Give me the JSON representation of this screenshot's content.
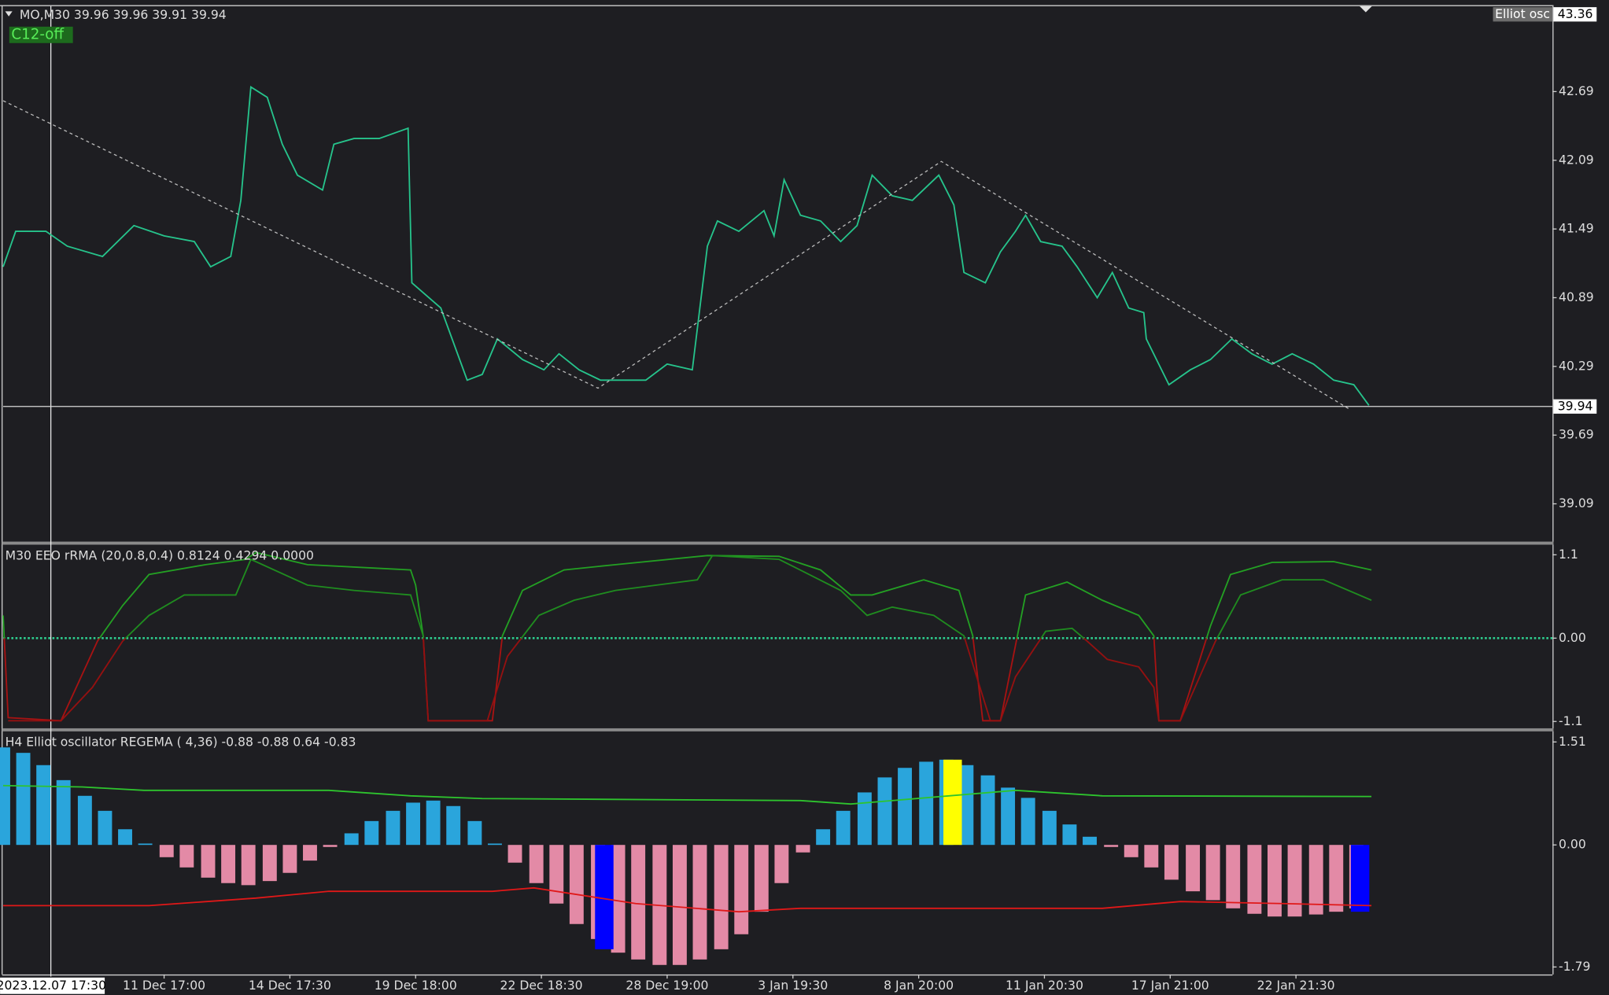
{
  "chart_data": [
    {
      "type": "line",
      "title": "MO,M30  39.96 39.96 39.91 39.94",
      "badge": "C12-off",
      "tag": "Elliot osc",
      "top_price": 43.36,
      "last_price": 39.94,
      "xlim": [
        -1.28,
        11.04
      ],
      "ylim": [
        38.76,
        43.4
      ],
      "yticks": [
        42.69,
        42.09,
        41.49,
        40.89,
        40.29,
        39.69,
        39.09
      ],
      "series": [
        {
          "color": "#26c48c",
          "x": [
            -1.28,
            -1.18,
            -0.94,
            -0.77,
            -0.49,
            -0.24,
            0,
            0.24,
            0.37,
            0.53,
            0.61,
            0.69,
            0.82,
            0.94,
            1.06,
            1.26,
            1.35,
            1.51,
            1.71,
            1.94,
            1.97,
            2.2,
            2.41,
            2.53,
            2.65,
            2.85,
            3.02,
            3.14,
            3.3,
            3.47,
            3.63,
            3.83,
            4.0,
            4.2,
            4.26,
            4.32,
            4.4,
            4.57,
            4.77,
            4.85,
            4.93,
            5.06,
            5.22,
            5.38,
            5.51,
            5.63,
            5.79,
            5.95,
            6.16,
            6.28,
            6.36,
            6.53,
            6.65,
            6.77,
            6.85,
            6.97,
            7.14,
            7.26,
            7.42,
            7.54,
            7.67,
            7.79,
            7.81,
            7.99,
            8.16,
            8.32,
            8.49,
            8.65,
            8.81,
            8.97,
            9.14,
            9.3,
            9.46,
            9.58
          ],
          "values": [
            41.16,
            41.47,
            41.47,
            41.34,
            41.25,
            41.52,
            41.43,
            41.38,
            41.16,
            41.25,
            41.74,
            42.73,
            42.64,
            42.23,
            41.96,
            41.83,
            42.23,
            42.28,
            42.28,
            42.37,
            41.02,
            40.8,
            40.17,
            40.22,
            40.53,
            40.35,
            40.26,
            40.4,
            40.26,
            40.17,
            40.17,
            40.17,
            40.31,
            40.26,
            40.8,
            41.34,
            41.56,
            41.47,
            41.65,
            41.43,
            41.92,
            41.61,
            41.56,
            41.38,
            41.52,
            41.96,
            41.78,
            41.74,
            41.96,
            41.7,
            41.11,
            41.02,
            41.29,
            41.47,
            41.61,
            41.38,
            41.34,
            41.16,
            40.89,
            41.11,
            40.8,
            40.76,
            40.53,
            40.13,
            40.26,
            40.35,
            40.53,
            40.4,
            40.31,
            40.4,
            40.31,
            40.17,
            40.13,
            39.95
          ]
        },
        {
          "color": "#bbbbbb",
          "dashed": true,
          "x": [
            -1.28,
            3.45,
            6.18,
            9.42
          ],
          "values": [
            42.61,
            40.1,
            42.08,
            39.92
          ]
        }
      ]
    },
    {
      "type": "line",
      "title": "M30 EEO rRMA (20,0.8,0.4) 0.8124 0.4294 0.0000",
      "xlim": [
        -1.28,
        11.04
      ],
      "ylim": [
        -1.19,
        1.22
      ],
      "yticks": [
        1.1,
        {
          "value": 0,
          "label": "0.00"
        },
        -1.1
      ],
      "zero_line_color": "#2ecf8f",
      "series": [
        {
          "color": "#23a023",
          "color_below": "#a81212",
          "x": [
            -1.28,
            -1.24,
            -0.82,
            -0.53,
            -0.33,
            -0.12,
            0.33,
            0.65,
            0.73,
            1.14,
            1.96,
            2.0,
            2.06,
            2.1,
            2.61,
            2.69,
            2.85,
            3.18,
            3.59,
            4.32,
            4.89,
            5.22,
            5.46,
            5.63,
            6.04,
            6.32,
            6.43,
            6.51,
            6.65,
            6.85,
            7.18,
            7.46,
            7.75,
            7.87,
            7.91,
            8.08,
            8.32,
            8.48,
            8.81,
            9.3,
            9.6
          ],
          "values": [
            0.3,
            -1.05,
            -1.09,
            -0.04,
            0.43,
            0.84,
            0.97,
            1.04,
            1.13,
            0.97,
            0.9,
            0.7,
            0.03,
            -1.09,
            -1.09,
            0.03,
            0.63,
            0.9,
            0.97,
            1.09,
            1.08,
            0.9,
            0.57,
            0.57,
            0.77,
            0.63,
            0.03,
            -1.09,
            -1.09,
            0.57,
            0.74,
            0.5,
            0.3,
            0.03,
            -1.09,
            -1.09,
            0.16,
            0.84,
            1.0,
            1.01,
            0.9
          ]
        },
        {
          "color": "#1f8c1f",
          "color_below": "#951010",
          "x": [
            -1.24,
            -0.82,
            -0.57,
            -0.33,
            -0.12,
            0.16,
            0.57,
            0.69,
            1.14,
            1.51,
            1.96,
            2.06,
            2.1,
            2.57,
            2.73,
            2.98,
            3.26,
            3.59,
            4.24,
            4.36,
            4.89,
            5.38,
            5.59,
            5.79,
            6.12,
            6.36,
            6.57,
            6.65,
            6.77,
            7.01,
            7.22,
            7.34,
            7.5,
            7.75,
            7.87,
            7.91,
            8.08,
            8.36,
            8.56,
            8.89,
            9.22,
            9.6
          ],
          "values": [
            -1.09,
            -1.09,
            -0.65,
            -0.04,
            0.3,
            0.57,
            0.57,
            1.04,
            0.7,
            0.63,
            0.57,
            0.03,
            -1.09,
            -1.09,
            -0.24,
            0.3,
            0.5,
            0.63,
            0.77,
            1.09,
            1.04,
            0.63,
            0.3,
            0.41,
            0.3,
            0.03,
            -1.09,
            -1.09,
            -0.51,
            0.09,
            0.13,
            -0.04,
            -0.28,
            -0.38,
            -0.65,
            -1.09,
            -1.09,
            -0.04,
            0.57,
            0.77,
            0.77,
            0.5
          ]
        }
      ]
    },
    {
      "type": "bar",
      "title": "H4 Elliot oscillator  REGEMA ( 4,36) -0.88 -0.88 0.64 -0.83",
      "crosshair_label": "2023.12.07 17:30",
      "xlim": [
        -1.28,
        11.04
      ],
      "ylim": [
        -1.9,
        1.65
      ],
      "yticks": [
        1.51,
        {
          "value": 0,
          "label": "0.00"
        },
        -1.79
      ],
      "xticks": [
        {
          "value": 0,
          "label": "11 Dec 17:00"
        },
        {
          "value": 1,
          "label": "14 Dec 17:30"
        },
        {
          "value": 2,
          "label": "19 Dec 18:00"
        },
        {
          "value": 3,
          "label": "22 Dec 18:30"
        },
        {
          "value": 4,
          "label": "28 Dec 19:00"
        },
        {
          "value": 5,
          "label": "3 Jan 19:30"
        },
        {
          "value": 6,
          "label": "8 Jan 20:00"
        },
        {
          "value": 7,
          "label": "11 Jan 20:30"
        },
        {
          "value": 8,
          "label": "17 Jan 21:00"
        },
        {
          "value": 9,
          "label": "22 Jan 21:30"
        }
      ],
      "series": [
        {
          "type": "bar",
          "color_positive": "#2aa5dc",
          "color_negative": "#e38aa6",
          "x": [
            -1.28,
            -1.12,
            -0.96,
            -0.8,
            -0.63,
            -0.47,
            -0.31,
            -0.15,
            0.02,
            0.18,
            0.35,
            0.51,
            0.67,
            0.84,
            1.0,
            1.16,
            1.32,
            1.49,
            1.65,
            1.82,
            1.98,
            2.14,
            2.3,
            2.47,
            2.63,
            2.79,
            2.96,
            3.12,
            3.28,
            3.45,
            3.61,
            3.77,
            3.94,
            4.1,
            4.26,
            4.43,
            4.59,
            4.75,
            4.91,
            5.08,
            5.24,
            5.4,
            5.57,
            5.73,
            5.89,
            6.06,
            6.22,
            6.38,
            6.55,
            6.71,
            6.87,
            7.04,
            7.2,
            7.36,
            7.53,
            7.69,
            7.85,
            8.01,
            8.18,
            8.34,
            8.5,
            8.67,
            8.83,
            8.99,
            9.16,
            9.32,
            9.48
          ],
          "values": [
            1.43,
            1.35,
            1.17,
            0.95,
            0.72,
            0.5,
            0.23,
            0.02,
            -0.18,
            -0.33,
            -0.48,
            -0.56,
            -0.59,
            -0.53,
            -0.41,
            -0.23,
            -0.03,
            0.17,
            0.35,
            0.5,
            0.62,
            0.65,
            0.57,
            0.35,
            0.02,
            -0.26,
            -0.56,
            -0.86,
            -1.16,
            -1.38,
            -1.58,
            -1.68,
            -1.76,
            -1.76,
            -1.68,
            -1.53,
            -1.31,
            -0.98,
            -0.56,
            -0.11,
            0.23,
            0.5,
            0.77,
            0.99,
            1.13,
            1.22,
            1.25,
            1.17,
            1.02,
            0.84,
            0.69,
            0.5,
            0.3,
            0.12,
            -0.03,
            -0.18,
            -0.33,
            -0.51,
            -0.68,
            -0.81,
            -0.93,
            -1.01,
            -1.05,
            -1.05,
            -1.02,
            -0.98,
            -0.93
          ]
        },
        {
          "type": "bar",
          "colors": [
            "#0000ff",
            "#ffff00",
            "#0000ff"
          ],
          "x": [
            3.5,
            6.27,
            9.51
          ],
          "values": [
            -1.53,
            1.25,
            -0.98
          ]
        },
        {
          "type": "line",
          "color": "#2ec42e",
          "x": [
            -1.28,
            -0.65,
            -0.16,
            1.31,
            1.96,
            2.53,
            5.06,
            5.46,
            6.77,
            7.46,
            9.6
          ],
          "values": [
            0.87,
            0.85,
            0.8,
            0.8,
            0.72,
            0.68,
            0.65,
            0.6,
            0.8,
            0.72,
            0.71
          ]
        },
        {
          "type": "line",
          "color": "#e01818",
          "x": [
            -1.28,
            -0.12,
            0.73,
            1.31,
            2.61,
            2.94,
            3.75,
            4.57,
            5.06,
            7.46,
            8.08,
            8.89,
            9.6
          ],
          "values": [
            -0.89,
            -0.89,
            -0.78,
            -0.68,
            -0.68,
            -0.63,
            -0.86,
            -0.98,
            -0.93,
            -0.93,
            -0.83,
            -0.86,
            -0.89
          ]
        }
      ]
    }
  ]
}
